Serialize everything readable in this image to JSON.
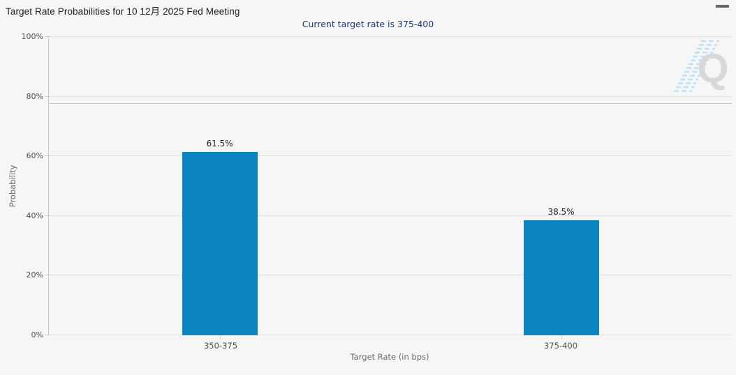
{
  "header": {
    "title": "Target Rate Probabilities for 10 12月 2025 Fed Meeting",
    "subtitle": "Current target rate is 375-400",
    "subtitle_color": "#1c3876",
    "menu_icon": "hamburger-icon"
  },
  "watermark": {
    "letter": "Q"
  },
  "chart_data": {
    "type": "bar",
    "title": "Target Rate Probabilities for 10 12月 2025 Fed Meeting",
    "subtitle": "Current target rate is 375-400",
    "categories": [
      "350-375",
      "375-400"
    ],
    "values": [
      61.5,
      38.5
    ],
    "data_labels": [
      "61.5%",
      "38.5%"
    ],
    "xlabel": "Target Rate (in bps)",
    "ylabel": "Probability",
    "ylim": [
      0,
      100
    ],
    "ytick_interval": 20,
    "yticks": [
      "0%",
      "20%",
      "40%",
      "60%",
      "80%",
      "100%"
    ],
    "grid": "horizontal dotted",
    "gridline_color": "#cccccc",
    "plotline_y": 77.5,
    "plotline_color": "#c6c6c6",
    "bar_color": "#0a84bd",
    "legend": "none"
  }
}
